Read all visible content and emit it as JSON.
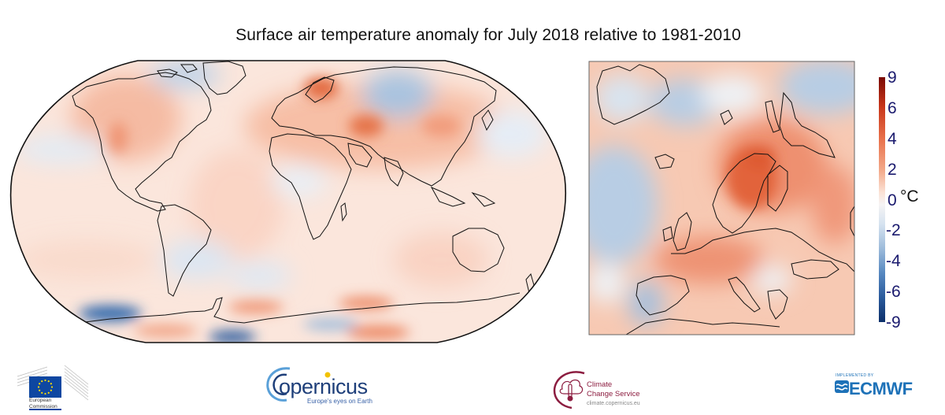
{
  "title": "Surface air temperature anomaly for July 2018 relative to 1981-2010",
  "chart_data": {
    "type": "heatmap",
    "title": "Surface air temperature anomaly for July 2018 relative to 1981-2010",
    "panels": [
      {
        "name": "global",
        "projection": "Robinson",
        "extent": "world"
      },
      {
        "name": "europe",
        "projection": "regional",
        "extent": "Europe and North Atlantic"
      }
    ],
    "colorbar": {
      "label": "°C",
      "ticks": [
        "9",
        "6",
        "4",
        "2",
        "0",
        "-2",
        "-4",
        "-6",
        "-9"
      ],
      "tick_values": [
        9,
        6,
        4,
        2,
        0,
        -2,
        -4,
        -6,
        -9
      ],
      "range": [
        -9,
        9
      ],
      "colors": [
        "#7a0a04",
        "#c8361b",
        "#e8704a",
        "#f3a98a",
        "#fbe2d5",
        "#f6f4f4",
        "#d6e3f0",
        "#9dbbdb",
        "#5688c0",
        "#2a5a9c",
        "#0c2f6a"
      ]
    },
    "regions_notable": [
      {
        "region": "Scandinavia",
        "anomaly": "strongly positive"
      },
      {
        "region": "Caspian / Central Asia",
        "anomaly": "strongly positive"
      },
      {
        "region": "Western Siberia",
        "anomaly": "negative"
      },
      {
        "region": "Northwest Atlantic / Canadian Arctic",
        "anomaly": "negative"
      },
      {
        "region": "Southern Ocean (Pacific sector)",
        "anomaly": "strongly negative"
      },
      {
        "region": "Iberia / North Atlantic",
        "anomaly": "negative"
      },
      {
        "region": "Western North America",
        "anomaly": "positive"
      }
    ]
  },
  "logos": {
    "european_commission": {
      "line1": "European",
      "line2": "Commission",
      "color": "#0e47a1"
    },
    "copernicus": {
      "word": "opernicus",
      "initial": "C",
      "tagline": "Europe's eyes on Earth",
      "color": "#1e3f7a",
      "dot_color": "#f2c200"
    },
    "c3s": {
      "line1": "Climate",
      "line2": "Change Service",
      "url": "climate.copernicus.eu",
      "color": "#8c1d40"
    },
    "ecmwf": {
      "implemented_by": "IMPLEMENTED BY",
      "word": "ECMWF",
      "color": "#1e72b8"
    }
  }
}
